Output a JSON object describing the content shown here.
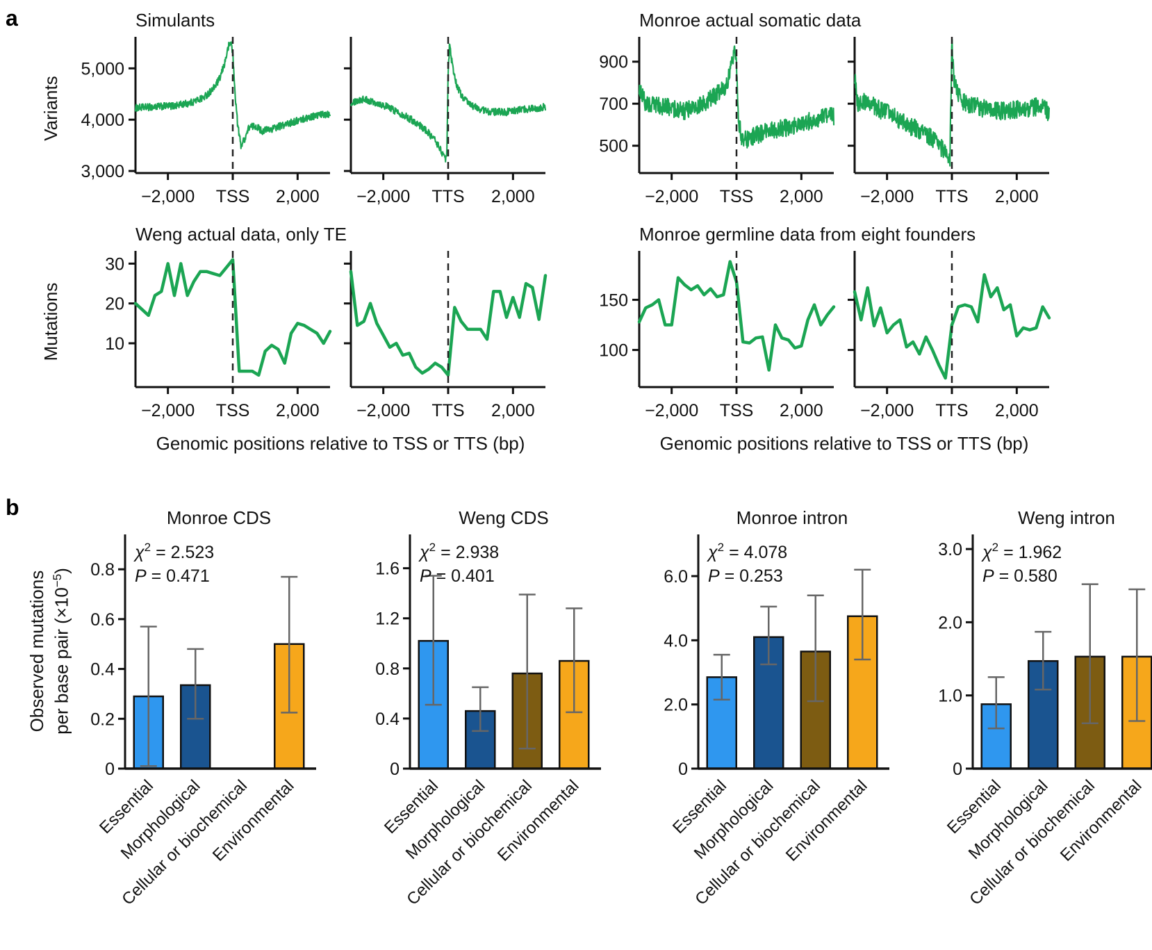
{
  "panel_a_label": "a",
  "panel_b_label": "b",
  "colors": {
    "line_green": "#1ba553",
    "axis_black": "#111111",
    "error_gray": "#666666",
    "bar_colors": [
      "#2f97ef",
      "#1a5490",
      "#7d5c12",
      "#f6a71b"
    ]
  },
  "chart_data": {
    "line_groups": [
      {
        "type": "line",
        "title": "Simulants",
        "ylabel": "Variants",
        "ylim": [
          2960,
          5560
        ],
        "yticks": [
          3000,
          4000,
          5000
        ],
        "ytick_labels": [
          "3,000",
          "4,000",
          "5,000"
        ],
        "xlim": [
          -3000,
          3000
        ],
        "noise": 70,
        "samples": 560,
        "subplots": [
          {
            "xtick_labels": [
              "−2,000",
              "TSS",
              "2,000"
            ],
            "trend": [
              [
                -3000,
                4230
              ],
              [
                -2400,
                4250
              ],
              [
                -1800,
                4270
              ],
              [
                -1300,
                4330
              ],
              [
                -900,
                4430
              ],
              [
                -600,
                4600
              ],
              [
                -400,
                4800
              ],
              [
                -250,
                5100
              ],
              [
                -120,
                5450
              ],
              [
                -40,
                5500
              ],
              [
                0,
                5280
              ],
              [
                60,
                4600
              ],
              [
                150,
                3900
              ],
              [
                250,
                3500
              ],
              [
                350,
                3600
              ],
              [
                500,
                3850
              ],
              [
                700,
                3880
              ],
              [
                900,
                3780
              ],
              [
                1200,
                3820
              ],
              [
                1600,
                3900
              ],
              [
                2000,
                3980
              ],
              [
                2400,
                4060
              ],
              [
                2800,
                4100
              ],
              [
                3000,
                4120
              ]
            ]
          },
          {
            "xtick_labels": [
              "−2,000",
              "TTS",
              "2,000"
            ],
            "trend": [
              [
                -3000,
                4340
              ],
              [
                -2600,
                4400
              ],
              [
                -2200,
                4330
              ],
              [
                -1800,
                4230
              ],
              [
                -1400,
                4100
              ],
              [
                -1000,
                3950
              ],
              [
                -700,
                3800
              ],
              [
                -400,
                3600
              ],
              [
                -200,
                3380
              ],
              [
                -100,
                3220
              ],
              [
                -40,
                3300
              ],
              [
                0,
                4900
              ],
              [
                40,
                5450
              ],
              [
                120,
                5100
              ],
              [
                250,
                4700
              ],
              [
                400,
                4480
              ],
              [
                600,
                4330
              ],
              [
                900,
                4220
              ],
              [
                1300,
                4150
              ],
              [
                1800,
                4150
              ],
              [
                2300,
                4200
              ],
              [
                2800,
                4230
              ],
              [
                3000,
                4250
              ]
            ]
          }
        ]
      },
      {
        "type": "line",
        "title": "Monroe actual somatic data",
        "ylabel": "",
        "ylim": [
          370,
          1005
        ],
        "yticks": [
          500,
          700,
          900
        ],
        "ytick_labels": [
          "500",
          "700",
          "900"
        ],
        "xlim": [
          -3000,
          3000
        ],
        "noise": 43,
        "samples": 560,
        "subplots": [
          {
            "xtick_labels": [
              "−2,000",
              "TSS",
              "2,000"
            ],
            "trend": [
              [
                -3000,
                780
              ],
              [
                -2800,
                700
              ],
              [
                -2400,
                690
              ],
              [
                -2000,
                680
              ],
              [
                -1600,
                665
              ],
              [
                -1200,
                685
              ],
              [
                -900,
                710
              ],
              [
                -600,
                745
              ],
              [
                -400,
                770
              ],
              [
                -250,
                820
              ],
              [
                -120,
                900
              ],
              [
                -50,
                975
              ],
              [
                0,
                905
              ],
              [
                60,
                620
              ],
              [
                150,
                545
              ],
              [
                300,
                525
              ],
              [
                500,
                545
              ],
              [
                800,
                560
              ],
              [
                1200,
                575
              ],
              [
                1700,
                590
              ],
              [
                2200,
                615
              ],
              [
                2700,
                635
              ],
              [
                3000,
                640
              ]
            ]
          },
          {
            "xtick_labels": [
              "−2,000",
              "TTS",
              "2,000"
            ],
            "trend": [
              [
                -3000,
                830
              ],
              [
                -2900,
                700
              ],
              [
                -2600,
                710
              ],
              [
                -2200,
                670
              ],
              [
                -1800,
                640
              ],
              [
                -1400,
                600
              ],
              [
                -1000,
                575
              ],
              [
                -700,
                545
              ],
              [
                -450,
                510
              ],
              [
                -250,
                475
              ],
              [
                -120,
                435
              ],
              [
                -60,
                420
              ],
              [
                0,
                1000
              ],
              [
                60,
                820
              ],
              [
                150,
                760
              ],
              [
                300,
                710
              ],
              [
                500,
                700
              ],
              [
                900,
                680
              ],
              [
                1400,
                665
              ],
              [
                1900,
                670
              ],
              [
                2400,
                680
              ],
              [
                2800,
                690
              ],
              [
                3000,
                655
              ]
            ]
          }
        ]
      },
      {
        "type": "line",
        "title": "Weng actual data, only TE",
        "ylabel": "Mutations",
        "ylim": [
          -1,
          32.5
        ],
        "yticks": [
          10,
          20,
          30
        ],
        "ytick_labels": [
          "10",
          "20",
          "30"
        ],
        "xlim": [
          -3000,
          3000
        ],
        "caption": "Genomic positions relative to TSS or TTS (bp)",
        "subplots": [
          {
            "xtick_labels": [
              "−2,000",
              "TSS",
              "2,000"
            ],
            "points": [
              20,
              18.5,
              17,
              22,
              23,
              30,
              22,
              30,
              22,
              25.5,
              28,
              28,
              27.5,
              27,
              29,
              31,
              3,
              3,
              3,
              2,
              8,
              9.5,
              8.5,
              5,
              12.5,
              15,
              14.5,
              13.5,
              12.5,
              10,
              13
            ]
          },
          {
            "xtick_labels": [
              "−2,000",
              "TTS",
              "2,000"
            ],
            "points": [
              28,
              14.5,
              15.5,
              20,
              15,
              12,
              9,
              10,
              7,
              7.5,
              4,
              2.5,
              3.5,
              5,
              4,
              2,
              19,
              15.5,
              13.5,
              13.5,
              13.5,
              11,
              23,
              23,
              16.5,
              21.5,
              16.5,
              25,
              24,
              16,
              27
            ]
          }
        ]
      },
      {
        "type": "line",
        "title": "Monroe germline data from eight founders",
        "ylabel": "",
        "ylim": [
          63,
          196
        ],
        "yticks": [
          100,
          150
        ],
        "ytick_labels": [
          "100",
          "150"
        ],
        "xlim": [
          -3000,
          3000
        ],
        "caption": "Genomic positions relative to TSS or TTS (bp)",
        "subplots": [
          {
            "xtick_labels": [
              "−2,000",
              "TSS",
              "2,000"
            ],
            "points": [
              128,
              142,
              145,
              150,
              125,
              125,
              172,
              165,
              160,
              164,
              155,
              161,
              153,
              155,
              188,
              168,
              108,
              107,
              112,
              113,
              80,
              125,
              112,
              110,
              102,
              104,
              130,
              145,
              125,
              135,
              143
            ]
          },
          {
            "xtick_labels": [
              "−2,000",
              "TTS",
              "2,000"
            ],
            "points": [
              158,
              130,
              162,
              124,
              142,
              117,
              125,
              130,
              103,
              108,
              96,
              113,
              100,
              85,
              72,
              125,
              143,
              145,
              143,
              128,
              175,
              153,
              162,
              140,
              145,
              114,
              122,
              120,
              122,
              143,
              132
            ]
          }
        ]
      }
    ],
    "bar_charts": [
      {
        "type": "bar",
        "title": "Monroe CDS",
        "stats": {
          "chi_label": "χ",
          "chi_sup": "2",
          "chi_value": " = 2.523",
          "p_label": "P",
          "p_value": " = 0.471"
        },
        "ylim": [
          0,
          0.94
        ],
        "yticks": [
          0,
          0.2,
          0.4,
          0.6,
          0.8
        ],
        "ytick_labels": [
          "0",
          "0.2",
          "0.4",
          "0.6",
          "0.8"
        ],
        "values": [
          0.29,
          0.335,
          null,
          0.5
        ],
        "errors": [
          [
            0.01,
            0.57
          ],
          [
            0.2,
            0.48
          ],
          null,
          [
            0.225,
            0.77
          ]
        ]
      },
      {
        "type": "bar",
        "title": "Weng CDS",
        "stats": {
          "chi_label": "χ",
          "chi_sup": "2",
          "chi_value": " = 2.938",
          "p_label": "P",
          "p_value": " = 0.401"
        },
        "ylim": [
          0,
          1.87
        ],
        "yticks": [
          0,
          0.4,
          0.8,
          1.2,
          1.6
        ],
        "ytick_labels": [
          "0",
          "0.4",
          "0.8",
          "1.2",
          "1.6"
        ],
        "values": [
          1.02,
          0.46,
          0.76,
          0.86
        ],
        "errors": [
          [
            0.51,
            1.54
          ],
          [
            0.3,
            0.65
          ],
          [
            0.16,
            1.39
          ],
          [
            0.45,
            1.28
          ]
        ]
      },
      {
        "type": "bar",
        "title": "Monroe intron",
        "stats": {
          "chi_label": "χ",
          "chi_sup": "2",
          "chi_value": " = 4.078",
          "p_label": "P",
          "p_value": " = 0.253"
        },
        "ylim": [
          0,
          7.3
        ],
        "yticks": [
          0,
          2,
          4,
          6
        ],
        "ytick_labels": [
          "0",
          "2.0",
          "4.0",
          "6.0"
        ],
        "values": [
          2.85,
          4.1,
          3.65,
          4.75
        ],
        "errors": [
          [
            2.15,
            3.55
          ],
          [
            3.25,
            5.05
          ],
          [
            2.1,
            5.4
          ],
          [
            3.4,
            6.2
          ]
        ]
      },
      {
        "type": "bar",
        "title": "Weng intron",
        "stats": {
          "chi_label": "χ",
          "chi_sup": "2",
          "chi_value": " = 1.962",
          "p_label": "P",
          "p_value": " = 0.580"
        },
        "ylim": [
          0,
          3.2
        ],
        "yticks": [
          0,
          1,
          2,
          3
        ],
        "ytick_labels": [
          "0",
          "1.0",
          "2.0",
          "3.0"
        ],
        "values": [
          0.88,
          1.47,
          1.53,
          1.53
        ],
        "errors": [
          [
            0.55,
            1.25
          ],
          [
            1.08,
            1.87
          ],
          [
            0.62,
            2.52
          ],
          [
            0.65,
            2.45
          ]
        ]
      }
    ],
    "bar_categories": [
      "Essential",
      "Morphological",
      "Cellular or biochemical",
      "Environmental"
    ],
    "panel_b_ylabel": {
      "line1": "Observed mutations",
      "line2_prefix": "per base pair (×10",
      "line2_sup": "−5",
      "line2_suffix": ")"
    }
  }
}
